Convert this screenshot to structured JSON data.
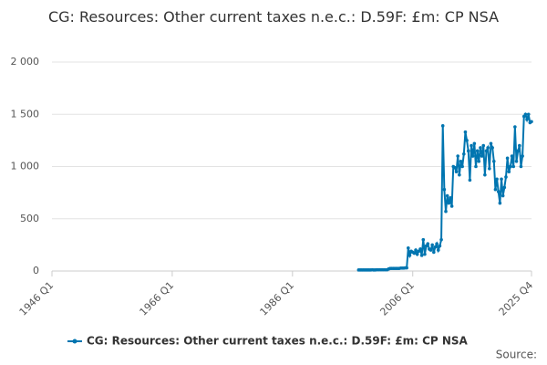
{
  "chart_data": {
    "type": "line",
    "title": "CG: Resources: Other current taxes n.e.c.: D.59F: £m: CP NSA",
    "source": "Source:",
    "categories": [
      "1946 Q1",
      null,
      null,
      null,
      null,
      null,
      null,
      null,
      null,
      null,
      null,
      null,
      null,
      null,
      null,
      null,
      null,
      null,
      null,
      null,
      null,
      null,
      null,
      null,
      null,
      null,
      null,
      null,
      null,
      null,
      null,
      null,
      null,
      null,
      null,
      null,
      null,
      null,
      null,
      null,
      null,
      null,
      null,
      null,
      null,
      null,
      null,
      null,
      null,
      null,
      null,
      null,
      null,
      null,
      null,
      null,
      null,
      null,
      null,
      null,
      null,
      null,
      null,
      null,
      null,
      null,
      null,
      null,
      null,
      null,
      null,
      null,
      null,
      null,
      null,
      null,
      null,
      null,
      null,
      null,
      "1966 Q1",
      null,
      null,
      null,
      null,
      null,
      null,
      null,
      null,
      null,
      null,
      null,
      null,
      null,
      null,
      null,
      null,
      null,
      null,
      null,
      null,
      null,
      null,
      null,
      null,
      null,
      null,
      null,
      null,
      null,
      null,
      null,
      null,
      null,
      null,
      null,
      null,
      null,
      null,
      null,
      null,
      null,
      null,
      null,
      null,
      null,
      null,
      null,
      null,
      null,
      null,
      null,
      null,
      null,
      null,
      null,
      null,
      null,
      null,
      null,
      null,
      null,
      null,
      null,
      null,
      null,
      null,
      null,
      null,
      null,
      null,
      null,
      null,
      null,
      null,
      null,
      null,
      null,
      null,
      null,
      "1986 Q1",
      null,
      null,
      null,
      null,
      null,
      null,
      null,
      null,
      null,
      null,
      null,
      null,
      null,
      null,
      null,
      null,
      null,
      null,
      null,
      null,
      null,
      null,
      null,
      null,
      null,
      null,
      null,
      null,
      null,
      null,
      null,
      null,
      null,
      null,
      null,
      null,
      null,
      null,
      null,
      null,
      null,
      null,
      null,
      null,
      null,
      null,
      null,
      null,
      null,
      null,
      null,
      null,
      null,
      null,
      null,
      null,
      null,
      null,
      null,
      null,
      null,
      null,
      null,
      null,
      null,
      null,
      null,
      null,
      null,
      null,
      null,
      null,
      null,
      null,
      null,
      null,
      null,
      null,
      null,
      "2006 Q1",
      null,
      null,
      null,
      null,
      null,
      null,
      null,
      null,
      null,
      null,
      null,
      null,
      null,
      null,
      null,
      null,
      null,
      null,
      null,
      null,
      null,
      null,
      null,
      null,
      null,
      null,
      null,
      null,
      null,
      null,
      null,
      null,
      null,
      null,
      null,
      null,
      null,
      null,
      null,
      null,
      null,
      null,
      null,
      null,
      null,
      null,
      null,
      null,
      null,
      null,
      null,
      null,
      null,
      null,
      null,
      null,
      null,
      null,
      null,
      null,
      null,
      null,
      null,
      null,
      null,
      null,
      null,
      null,
      null,
      null,
      null,
      null,
      null,
      null,
      null,
      null,
      null,
      null,
      "2025 Q4"
    ],
    "series": [
      {
        "name": "CG: Resources: Other current taxes n.e.c.: D.59F: £m: CP NSA",
        "color": "#0075b0",
        "values": [
          null,
          null,
          null,
          null,
          null,
          null,
          null,
          null,
          null,
          null,
          null,
          null,
          null,
          null,
          null,
          null,
          null,
          null,
          null,
          null,
          null,
          null,
          null,
          null,
          null,
          null,
          null,
          null,
          null,
          null,
          null,
          null,
          null,
          null,
          null,
          null,
          null,
          null,
          null,
          null,
          null,
          null,
          null,
          null,
          null,
          null,
          null,
          null,
          null,
          null,
          null,
          null,
          null,
          null,
          null,
          null,
          null,
          null,
          null,
          null,
          null,
          null,
          null,
          null,
          null,
          null,
          null,
          null,
          null,
          null,
          null,
          null,
          null,
          null,
          null,
          null,
          null,
          null,
          null,
          null,
          null,
          null,
          null,
          null,
          null,
          null,
          null,
          null,
          null,
          null,
          null,
          null,
          null,
          null,
          null,
          null,
          null,
          null,
          null,
          null,
          null,
          null,
          null,
          null,
          null,
          null,
          null,
          null,
          null,
          null,
          null,
          null,
          null,
          null,
          null,
          null,
          null,
          null,
          null,
          null,
          null,
          null,
          null,
          null,
          null,
          null,
          null,
          null,
          null,
          null,
          null,
          null,
          null,
          null,
          null,
          null,
          null,
          null,
          null,
          null,
          null,
          null,
          null,
          null,
          null,
          null,
          null,
          null,
          null,
          null,
          null,
          null,
          null,
          null,
          null,
          null,
          null,
          null,
          null,
          null,
          null,
          null,
          null,
          null,
          null,
          null,
          null,
          null,
          null,
          null,
          null,
          null,
          null,
          null,
          null,
          null,
          null,
          null,
          null,
          null,
          null,
          null,
          null,
          null,
          null,
          null,
          null,
          null,
          null,
          null,
          null,
          null,
          null,
          null,
          null,
          null,
          null,
          null,
          null,
          null,
          null,
          null,
          null,
          null,
          10,
          10,
          10,
          10,
          10,
          10,
          10,
          10,
          10,
          12,
          10,
          10,
          12,
          12,
          12,
          12,
          12,
          12,
          12,
          12,
          20,
          25,
          25,
          25,
          25,
          25,
          25,
          25,
          28,
          28,
          28,
          30,
          30,
          220,
          150,
          190,
          180,
          170,
          200,
          160,
          190,
          210,
          150,
          300,
          160,
          240,
          260,
          210,
          200,
          250,
          180,
          230,
          260,
          200,
          240,
          300,
          1390,
          780,
          570,
          720,
          650,
          700,
          620,
          1000,
          990,
          950,
          1100,
          920,
          1050,
          1000,
          1120,
          1330,
          1250,
          1150,
          870,
          1200,
          1100,
          1220,
          1000,
          1150,
          1050,
          1180,
          1100,
          1200,
          920,
          1150,
          1180,
          980,
          1220,
          1180,
          1050,
          780,
          880,
          760,
          650,
          880,
          720,
          800,
          900,
          1080,
          950,
          1000,
          1100,
          1000,
          1380,
          1050,
          1150,
          1200,
          1000,
          1100,
          1480,
          1500,
          1450,
          1500,
          1420,
          1430
        ]
      }
    ],
    "ylim": [
      0,
      2000
    ],
    "yticks": [
      0,
      500,
      {
        "value": 1000,
        "label": "1 000"
      },
      {
        "value": 1500,
        "label": "1 500"
      },
      {
        "value": 2000,
        "label": "2 000"
      }
    ],
    "grid": true,
    "legend": "bottom"
  }
}
